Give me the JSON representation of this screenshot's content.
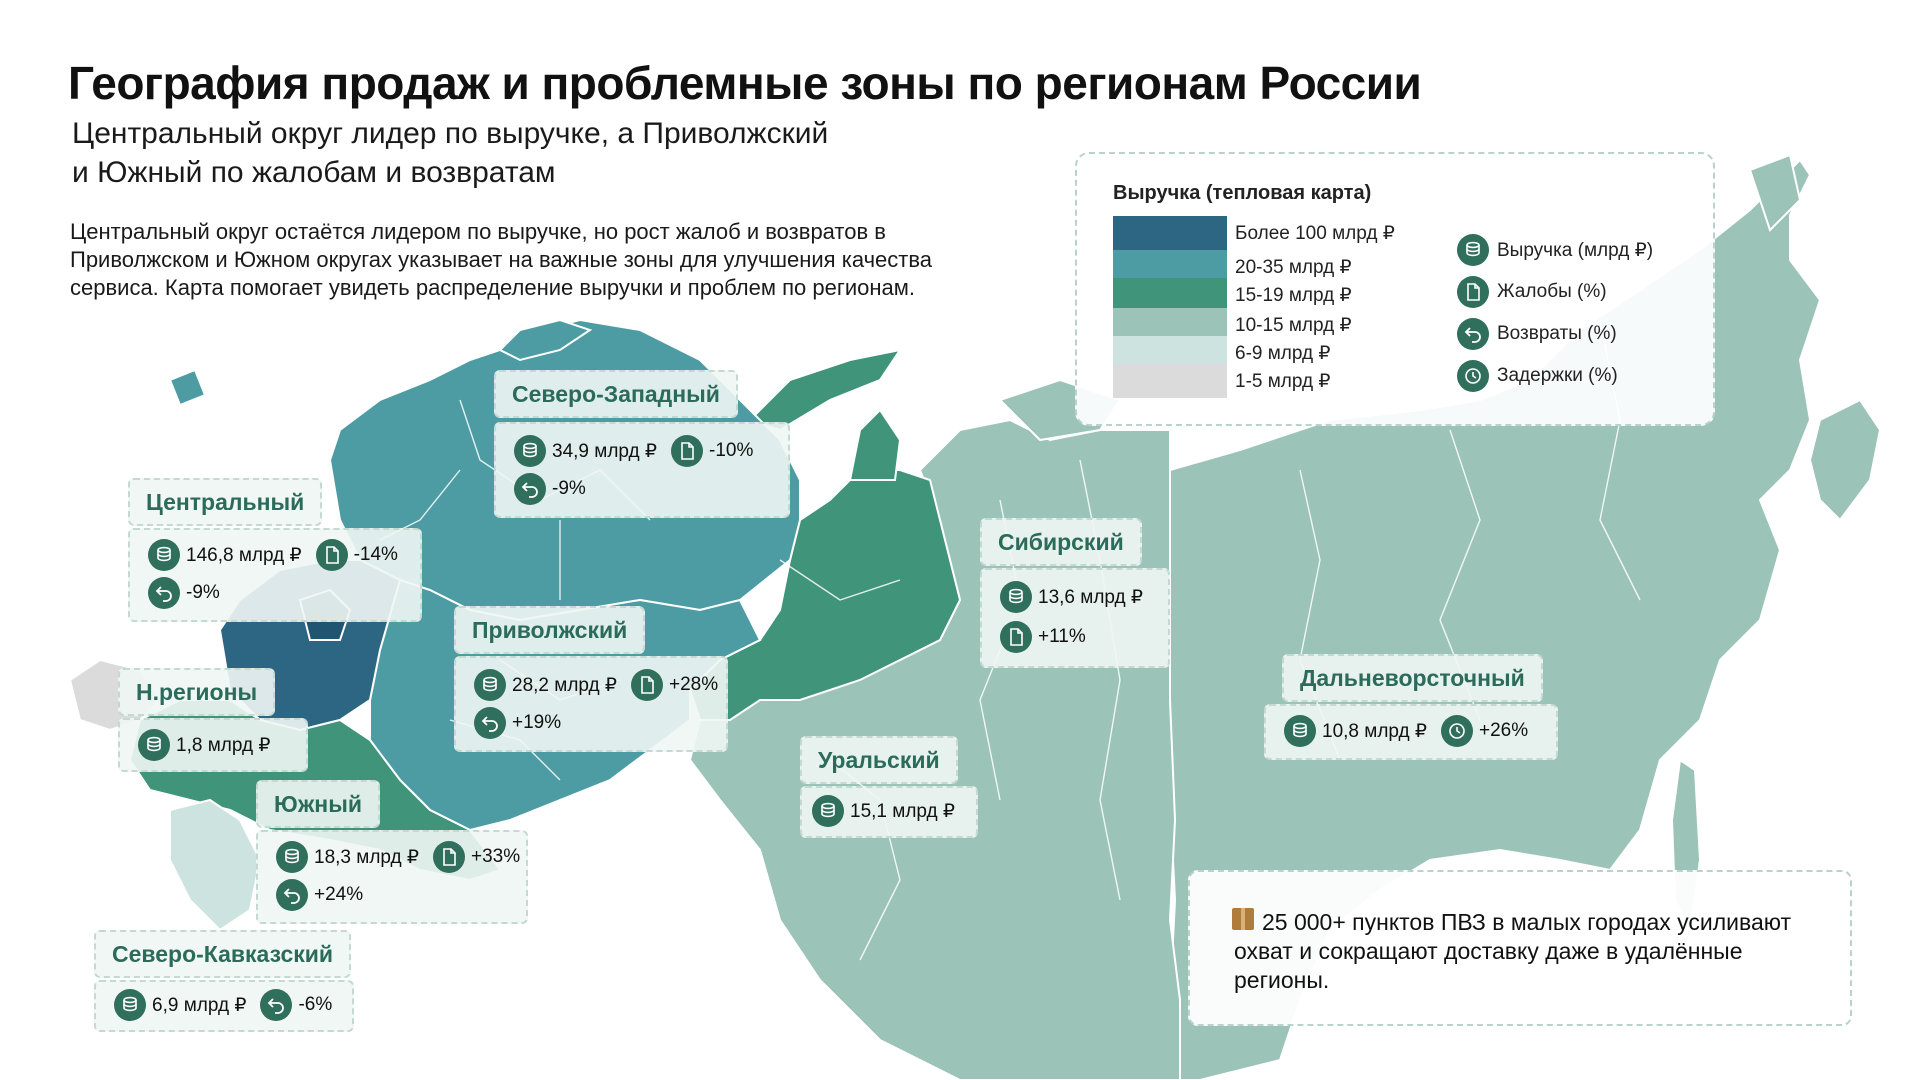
{
  "title": "География продаж и проблемные зоны по регионам России",
  "subtitle_line1": "Центральный округ лидер по выручке, а Приволжский",
  "subtitle_line2": "и Южный по жалобам и возвратам",
  "description": "Центральный округ остаётся лидером по выручке, но рост жалоб и возвратов в Приволжском и Южном округах указывает на важные зоны для улучшения качества сервиса. Карта помогает увидеть распределение выручки и проблем по регионам.",
  "legend": {
    "title": "Выручка (тепловая карта)",
    "heat_levels": [
      {
        "label": "Более 100 млрд ₽",
        "color": "#2c6683"
      },
      {
        "label": "20-35 млрд ₽",
        "color": "#4d9ca4"
      },
      {
        "label": "15-19 млрд ₽",
        "color": "#3f9479"
      },
      {
        "label": "10-15 млрд ₽",
        "color": "#9cc3b7"
      },
      {
        "label": "6-9 млрд ₽",
        "color": "#cde3df"
      },
      {
        "label": "1-5 млрд ₽",
        "color": "#dbdbdb"
      }
    ],
    "icons": [
      {
        "label": "Выручка (млрд ₽)",
        "icon": "coins-icon"
      },
      {
        "label": "Жалобы (%)",
        "icon": "document-icon"
      },
      {
        "label": "Возвраты (%)",
        "icon": "return-icon"
      },
      {
        "label": "Задержки (%)",
        "icon": "clock-icon"
      }
    ]
  },
  "regions": {
    "northwest": {
      "name": "Северо-Западный",
      "revenue": "34,9 млрд ₽",
      "complaints": "-10%",
      "returns": "-9%"
    },
    "central": {
      "name": "Центральный",
      "revenue": "146,8 млрд ₽",
      "complaints": "-14%",
      "returns": "-9%"
    },
    "volga": {
      "name": "Приволжский",
      "revenue": "28,2 млрд ₽",
      "complaints": "+28%",
      "returns": "+19%"
    },
    "new": {
      "name": "Н.регионы",
      "revenue": "1,8 млрд ₽"
    },
    "south": {
      "name": "Южный",
      "revenue": "18,3 млрд ₽",
      "complaints": "+33%",
      "returns": "+24%"
    },
    "caucasus": {
      "name": "Северо-Кавказский",
      "revenue": "6,9 млрд ₽",
      "returns": "-6%"
    },
    "siberia": {
      "name": "Сибирский",
      "revenue": "13,6 млрд ₽",
      "complaints": "+11%"
    },
    "ural": {
      "name": "Уральский",
      "revenue": "15,1 млрд ₽"
    },
    "fareast": {
      "name": "Дальневорсточный",
      "revenue": "10,8 млрд ₽",
      "delays": "+26%"
    }
  },
  "note": "25 000+ пунктов ПВЗ в малых городах усиливают охват и сокращают доставку даже в удалённые регионы."
}
